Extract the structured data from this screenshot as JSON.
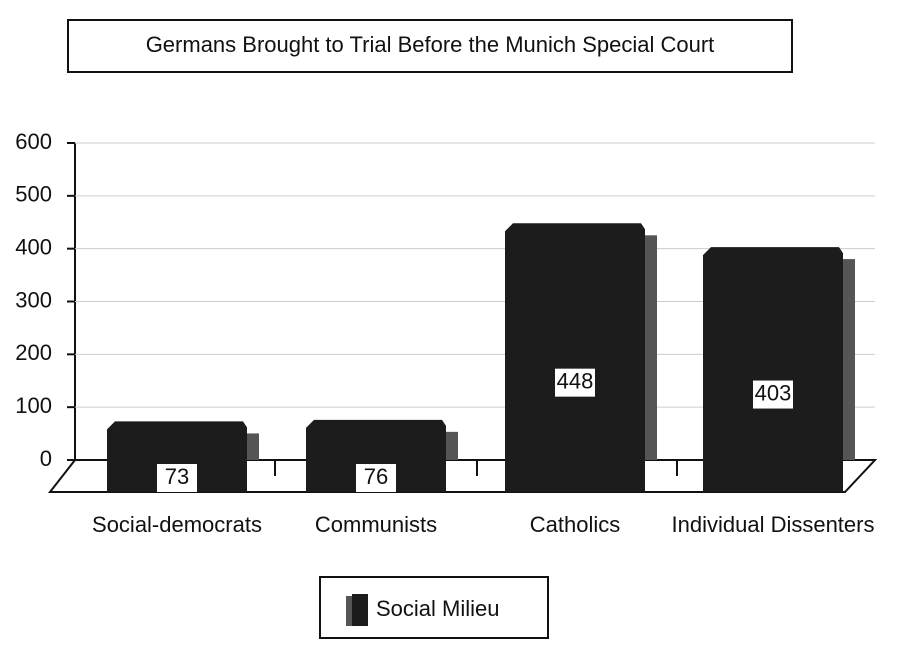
{
  "chart_data": {
    "type": "bar3d",
    "title": "Germans Brought to Trial Before the Munich Special Court",
    "categories": [
      "Social-democrats",
      "Communists",
      "Catholics",
      "Individual Dissenters"
    ],
    "series": [
      {
        "name": "Social Milieu",
        "color": "#1c1c1c",
        "values": [
          73,
          76,
          448,
          403
        ]
      }
    ],
    "ylim": [
      0,
      600
    ],
    "yticks": [
      0,
      100,
      200,
      300,
      400,
      500,
      600
    ],
    "grid": true
  }
}
